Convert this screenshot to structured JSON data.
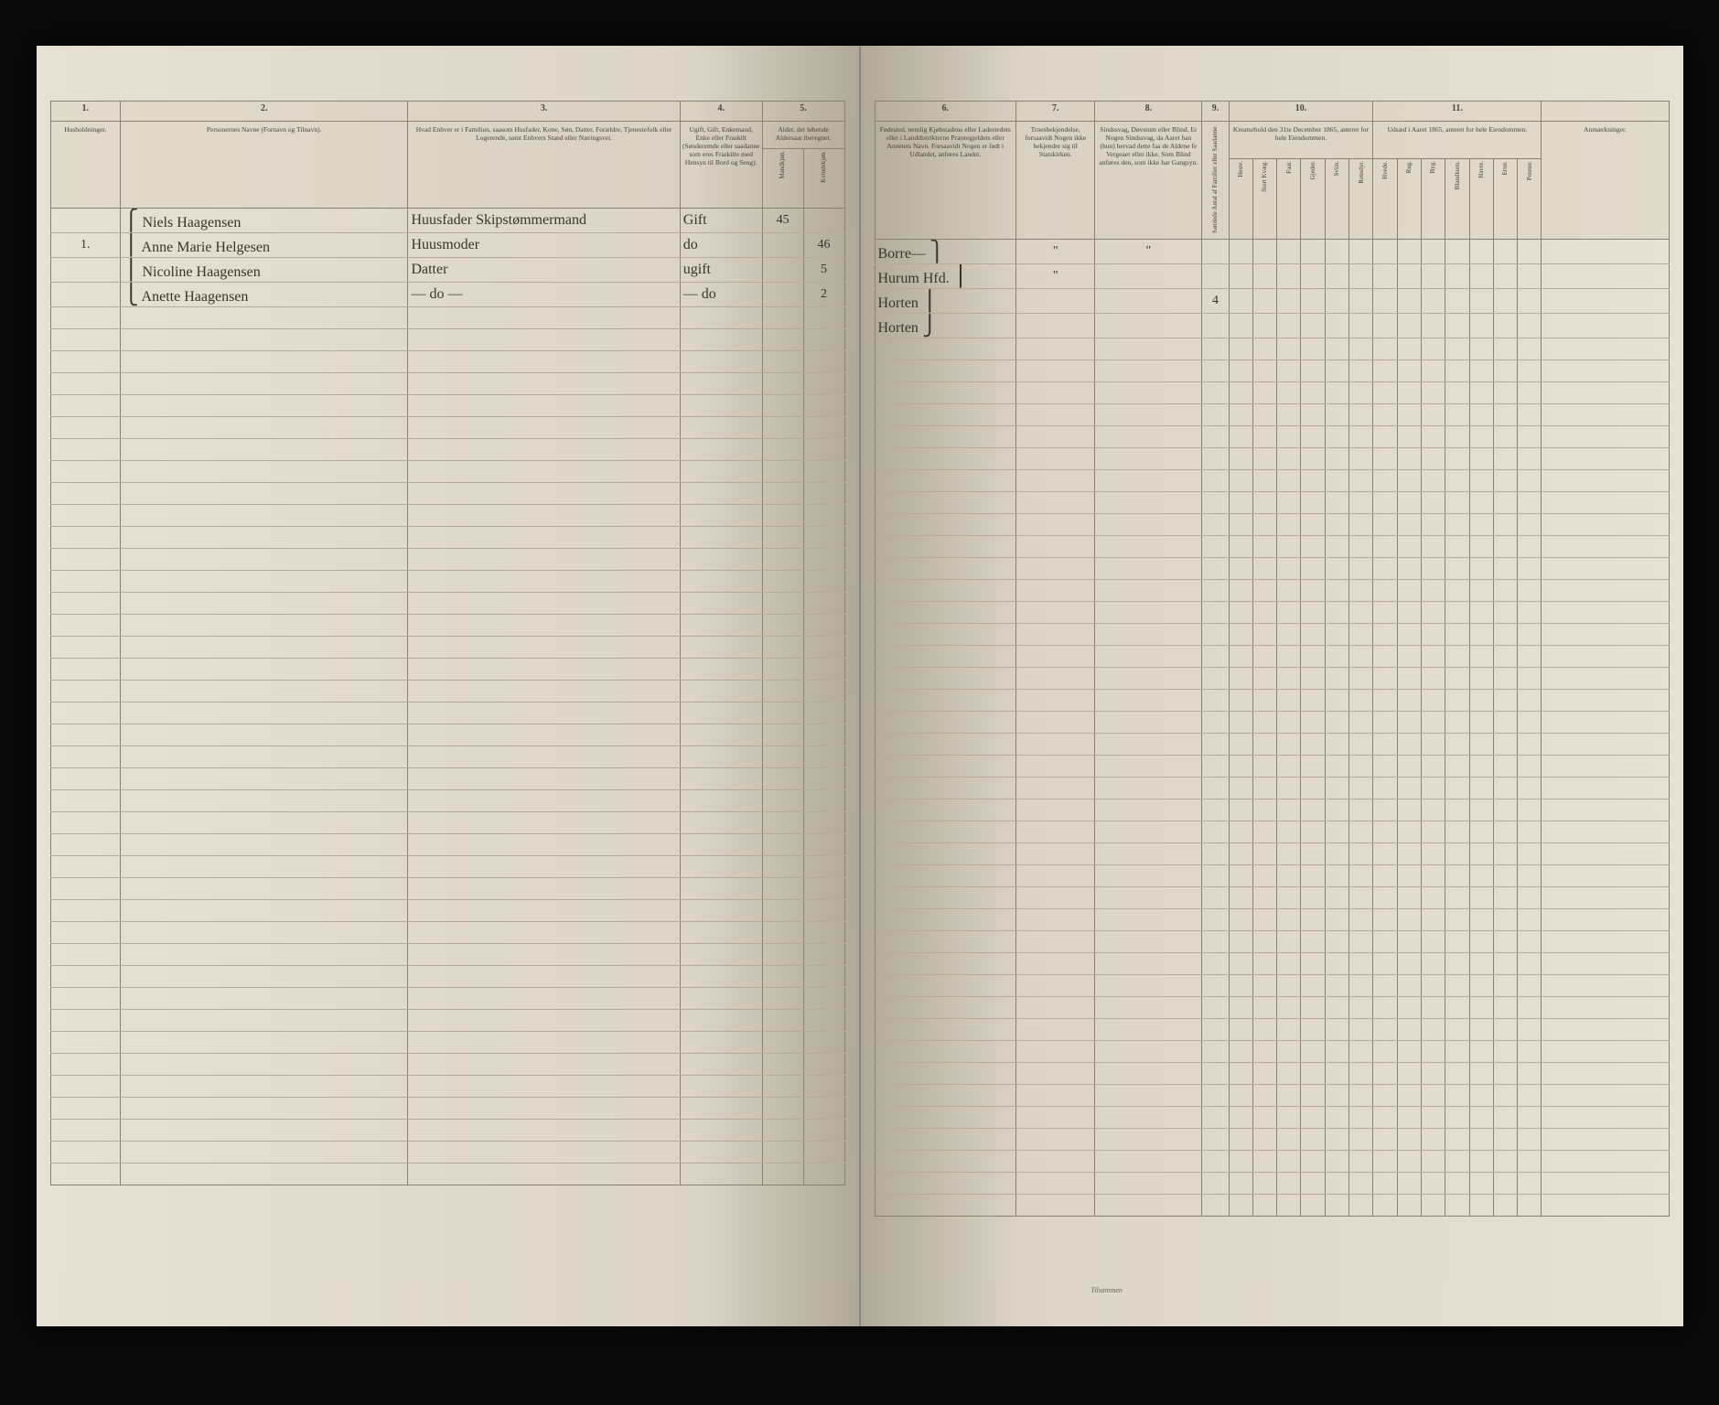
{
  "left_page": {
    "columns": {
      "c1": {
        "num": "1.",
        "head": "Husholdninger."
      },
      "c2": {
        "num": "2.",
        "head": "Personernes Navne (Fornavn og Tilnavn)."
      },
      "c3": {
        "num": "3.",
        "head": "Hvad Enhver er i Familien, saasom Husfader, Kone, Søn, Datter, Forældre, Tjenestefolk eller Logerende, samt Enhvers Stand eller Næringsvei."
      },
      "c4": {
        "num": "4.",
        "head": "Ugift, Gift, Enkemand, Enke eller Fraskilt (Sønderemde eller saadanne som eres Fraskilte med Hensyn til Bord og Seng)."
      },
      "c5": {
        "num": "5.",
        "head": "Alder, det løbende Aldersaar iberegnet.",
        "sub1": "Mandkjøn.",
        "sub2": "Kvindekjøn."
      }
    },
    "rows": [
      {
        "c1": "",
        "c2": "Niels Haagensen",
        "c3": "Huusfader Skipstømmermand",
        "c4": "Gift",
        "c5a": "45",
        "c5b": ""
      },
      {
        "c1": "1.",
        "c2": "Anne Marie Helgesen",
        "c3": "Huusmoder",
        "c4": "do",
        "c5a": "",
        "c5b": "46"
      },
      {
        "c1": "",
        "c2": "Nicoline Haagensen",
        "c3": "Datter",
        "c4": "ugift",
        "c5a": "",
        "c5b": "5"
      },
      {
        "c1": "",
        "c2": "Anette Haagensen",
        "c3": "— do —",
        "c4": "— do",
        "c5a": "",
        "c5b": "2"
      }
    ],
    "blank_rows": 40
  },
  "right_page": {
    "columns": {
      "c6": {
        "num": "6.",
        "head": "Fødested, nemlig Kjøbstadens eller Ladestedets eller i Landdistrikterne Præstegjeldets eller Annetets Navn. Forsaavidt Nogen er født i Udlandet, anføres Landet."
      },
      "c7": {
        "num": "7.",
        "head": "Troesbekjendelse, forsaavidt Nogen ikke bekjender sig til Statskirken."
      },
      "c8": {
        "num": "8.",
        "head": "Sindssvag, Døvstum eller Blind. Er Nogen Sindssvag, da Aaret han (hun) hervad dette faa de Aldene fe Vergeaer eller ikke. Som Blind anføres den, som ikke har Gangsyn."
      },
      "c9": {
        "num": "9.",
        "head": "",
        "sub1": "Samlede Antal af Familier eller Saadanne."
      },
      "c10": {
        "num": "10.",
        "head": "Kreaturhold den 31te December 1865, anteret for hele Eiendommen.",
        "subs": [
          "Heste.",
          "Stort Kvæg.",
          "Faar.",
          "Gjeder.",
          "Sviin.",
          "Rensdyr."
        ]
      },
      "c11": {
        "num": "11.",
        "head": "Udsæd i Aaret 1865, anteret for hele Eiendommen.",
        "subs": [
          "Hvede.",
          "Rug.",
          "Byg.",
          "Blandkorn.",
          "Havre.",
          "Erter.",
          "Poteter."
        ]
      },
      "c12": {
        "head": "Anmærkninger."
      }
    },
    "rows": [
      {
        "c6": "Borre—",
        "c7": "\"",
        "c8": "\"",
        "c9": "",
        "c10": [
          "",
          "",
          "",
          "",
          "",
          ""
        ],
        "c11": [
          "",
          "",
          "",
          "",
          "",
          "",
          ""
        ],
        "c12": ""
      },
      {
        "c6": "Hurum Hfd.",
        "c7": "\"",
        "c8": "",
        "c9": "",
        "c10": [
          "",
          "",
          "",
          "",
          "",
          ""
        ],
        "c11": [
          "",
          "",
          "",
          "",
          "",
          "",
          ""
        ],
        "c12": ""
      },
      {
        "c6": "Horten",
        "c7": "",
        "c8": "",
        "c9": "4",
        "c10": [
          "",
          "",
          "",
          "",
          "",
          ""
        ],
        "c11": [
          "",
          "",
          "",
          "",
          "",
          "",
          ""
        ],
        "c12": ""
      },
      {
        "c6": "Horten",
        "c7": "",
        "c8": "",
        "c9": "",
        "c10": [
          "",
          "",
          "",
          "",
          "",
          ""
        ],
        "c11": [
          "",
          "",
          "",
          "",
          "",
          "",
          ""
        ],
        "c12": ""
      }
    ],
    "blank_rows": 40,
    "footer": "Tilsammen"
  }
}
